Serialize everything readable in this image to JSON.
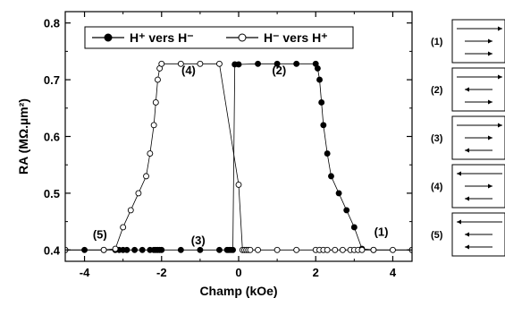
{
  "chart_data": {
    "type": "scatter",
    "xlabel": "Champ (kOe)",
    "ylabel": "RA  (MΩ.µm²)",
    "xlim": [
      -4.5,
      4.5
    ],
    "ylim": [
      0.38,
      0.82
    ],
    "xticks": [
      -4,
      -2,
      0,
      2,
      4
    ],
    "yticks": [
      0.4,
      0.5,
      0.6,
      0.7,
      0.8
    ],
    "legend_placement": "top-left",
    "series": [
      {
        "name": "H⁺ vers H⁻",
        "marker": "filled-circle",
        "color": "#000000",
        "x": [
          4.5,
          3.5,
          3.2,
          3.0,
          2.8,
          2.6,
          2.4,
          2.3,
          2.2,
          2.15,
          2.1,
          2.05,
          2.0,
          1.5,
          1.0,
          0.5,
          0.0,
          -0.1,
          -0.15,
          -0.2,
          -0.25,
          -0.3,
          -0.5,
          -1.0,
          -1.5,
          -2.0,
          -2.05,
          -2.1,
          -2.15,
          -2.2,
          -2.3,
          -2.5,
          -2.7,
          -2.9,
          -3.0,
          -3.1,
          -3.2,
          -3.5,
          -4.0,
          -4.5
        ],
        "y": [
          0.4,
          0.4,
          0.402,
          0.44,
          0.47,
          0.5,
          0.53,
          0.57,
          0.62,
          0.66,
          0.7,
          0.72,
          0.728,
          0.728,
          0.728,
          0.728,
          0.727,
          0.727,
          0.4,
          0.4,
          0.4,
          0.4,
          0.4,
          0.4,
          0.4,
          0.4,
          0.4,
          0.4,
          0.4,
          0.4,
          0.4,
          0.4,
          0.4,
          0.4,
          0.4,
          0.4,
          0.4,
          0.4,
          0.4,
          0.4
        ]
      },
      {
        "name": "H⁻ vers H⁺",
        "marker": "open-circle",
        "color": "#000000",
        "x": [
          -4.5,
          -3.5,
          -3.2,
          -3.0,
          -2.8,
          -2.6,
          -2.4,
          -2.3,
          -2.2,
          -2.15,
          -2.1,
          -2.05,
          -2.0,
          -1.5,
          -1.0,
          -0.5,
          0.0,
          0.1,
          0.15,
          0.2,
          0.25,
          0.3,
          0.5,
          1.0,
          1.5,
          2.0,
          2.1,
          2.2,
          2.3,
          2.5,
          2.7,
          2.9,
          3.0,
          3.1,
          3.2,
          3.5,
          4.0,
          4.5
        ],
        "y": [
          0.4,
          0.4,
          0.402,
          0.44,
          0.47,
          0.5,
          0.53,
          0.57,
          0.62,
          0.66,
          0.7,
          0.72,
          0.728,
          0.728,
          0.728,
          0.728,
          0.515,
          0.4,
          0.4,
          0.4,
          0.4,
          0.4,
          0.4,
          0.4,
          0.4,
          0.4,
          0.4,
          0.4,
          0.4,
          0.4,
          0.4,
          0.4,
          0.4,
          0.4,
          0.4,
          0.4,
          0.4,
          0.4
        ]
      }
    ],
    "annotations": [
      {
        "text": "(1)",
        "x": 3.7,
        "y": 0.425
      },
      {
        "text": "(2)",
        "x": 1.05,
        "y": 0.71
      },
      {
        "text": "(3)",
        "x": -1.05,
        "y": 0.41
      },
      {
        "text": "(4)",
        "x": -1.3,
        "y": 0.71
      },
      {
        "text": "(5)",
        "x": -3.6,
        "y": 0.42
      }
    ]
  },
  "configurations": [
    {
      "label": "(1)",
      "arrows": [
        "right",
        "right",
        "right"
      ]
    },
    {
      "label": "(2)",
      "arrows": [
        "right",
        "left",
        "right"
      ]
    },
    {
      "label": "(3)",
      "arrows": [
        "right",
        "right",
        "left"
      ]
    },
    {
      "label": "(4)",
      "arrows": [
        "left",
        "right",
        "left"
      ]
    },
    {
      "label": "(5)",
      "arrows": [
        "left",
        "left",
        "left"
      ]
    }
  ]
}
